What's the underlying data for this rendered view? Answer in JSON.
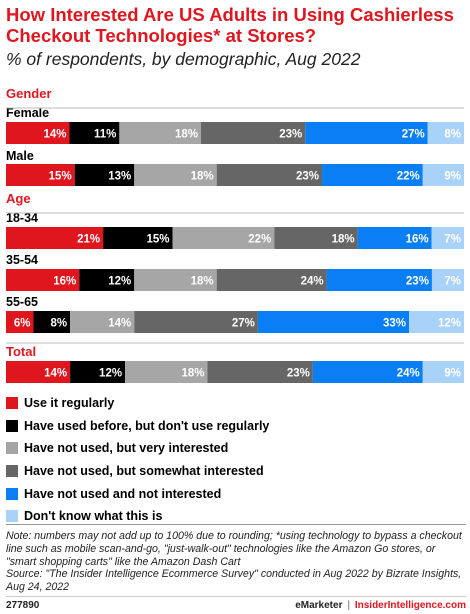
{
  "header": {
    "title": "How Interested Are US Adults in Using Cashierless Checkout Technologies* at Stores?",
    "subtitle": "% of respondents, by demographic, Aug 2022"
  },
  "chart_data": {
    "type": "bar",
    "stacked": true,
    "orientation": "horizontal",
    "groups": [
      {
        "label": "Gender",
        "rows": [
          {
            "label": "Female",
            "values": [
              14,
              11,
              18,
              23,
              27,
              8
            ]
          },
          {
            "label": "Male",
            "values": [
              15,
              13,
              18,
              23,
              22,
              9
            ]
          }
        ]
      },
      {
        "label": "Age",
        "rows": [
          {
            "label": "18-34",
            "values": [
              21,
              15,
              22,
              18,
              16,
              7
            ]
          },
          {
            "label": "35-54",
            "values": [
              16,
              12,
              18,
              24,
              23,
              7
            ]
          },
          {
            "label": "55-65",
            "values": [
              6,
              8,
              14,
              27,
              33,
              12
            ]
          }
        ]
      },
      {
        "label": "Total",
        "rows": [
          {
            "label": "",
            "values": [
              14,
              12,
              18,
              23,
              24,
              9
            ]
          }
        ]
      }
    ],
    "series": [
      {
        "name": "Use it regularly",
        "color": "#e0161f",
        "label_color": "#ffffff"
      },
      {
        "name": "Have used before, but don't use regularly",
        "color": "#000000",
        "label_color": "#ffffff"
      },
      {
        "name": "Have not used, but very interested",
        "color": "#a6a6a6",
        "label_color": "#ffffff"
      },
      {
        "name": "Have not used, but somewhat interested",
        "color": "#666666",
        "label_color": "#ffffff"
      },
      {
        "name": "Have not used and not interested",
        "color": "#0a7ff5",
        "label_color": "#ffffff"
      },
      {
        "name": "Don't know what this is",
        "color": "#a9d2f8",
        "label_color": "#ffffff"
      }
    ],
    "value_suffix": "%",
    "group_label_color": "#e0161f",
    "legend_position": "bottom"
  },
  "note": {
    "line1": "Note: numbers may not add up to 100% due to rounding; *using technology to bypass a checkout line such as mobile scan-and-go, \"just-walk-out\" technologies like the Amazon Go stores, or \"smart shopping carts\" like the Amazon Dash Cart",
    "line2": "Source: \"The Insider Intelligence Ecommerce Survey\" conducted in Aug 2022 by Bizrate Insights, Aug 24, 2022"
  },
  "footer": {
    "code": "277890",
    "brand": "eMarketer",
    "separator": "|",
    "site": "InsiderIntelligence.com"
  }
}
